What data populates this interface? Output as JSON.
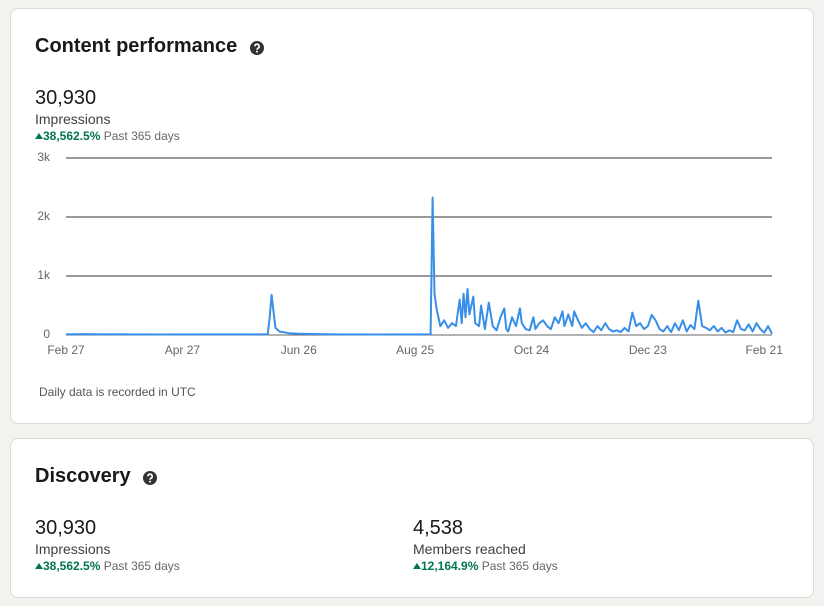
{
  "content_performance": {
    "title": "Content performance",
    "impressions": {
      "value": "30,930",
      "label": "Impressions",
      "change": "38,562.5%",
      "period": "Past 365 days"
    },
    "chart_data": {
      "type": "line",
      "color": "#378fe9",
      "x": [
        0,
        10,
        20,
        30,
        50,
        70,
        90,
        104,
        105,
        106,
        107,
        108,
        110,
        115,
        120,
        130,
        140,
        160,
        180,
        188,
        189,
        190,
        191,
        193,
        195,
        197,
        199,
        201,
        203,
        204,
        205,
        206,
        207,
        208,
        210,
        211,
        213,
        214,
        216,
        218,
        220,
        222,
        224,
        226,
        227,
        228,
        230,
        232,
        234,
        235,
        237,
        239,
        241,
        242,
        244,
        246,
        248,
        250,
        252,
        254,
        256,
        257,
        259,
        261,
        262,
        264,
        266,
        268,
        270,
        272,
        274,
        276,
        278,
        280,
        282,
        284,
        286,
        288,
        290,
        292,
        294,
        296,
        298,
        300,
        302,
        304,
        306,
        308,
        310,
        312,
        314,
        316,
        318,
        320,
        322,
        324,
        326,
        328,
        330,
        332,
        334,
        336,
        338,
        340,
        342,
        344,
        346,
        348,
        350,
        352,
        354,
        356,
        358,
        360,
        362,
        364
      ],
      "values": [
        10,
        15,
        10,
        12,
        8,
        10,
        10,
        12,
        300,
        680,
        400,
        120,
        60,
        30,
        20,
        15,
        10,
        8,
        10,
        12,
        2330,
        700,
        450,
        150,
        250,
        120,
        200,
        150,
        600,
        200,
        700,
        300,
        780,
        350,
        650,
        200,
        150,
        500,
        100,
        550,
        150,
        80,
        300,
        450,
        100,
        60,
        300,
        150,
        450,
        200,
        100,
        80,
        300,
        100,
        200,
        250,
        150,
        100,
        300,
        200,
        400,
        150,
        350,
        150,
        400,
        250,
        120,
        200,
        100,
        50,
        150,
        80,
        200,
        100,
        60,
        80,
        50,
        120,
        60,
        380,
        150,
        200,
        100,
        150,
        340,
        250,
        100,
        60,
        150,
        50,
        200,
        80,
        250,
        60,
        170,
        100,
        580,
        150,
        120,
        80,
        150,
        60,
        120,
        40,
        80,
        50,
        250,
        100,
        80,
        180,
        60,
        200,
        100,
        40,
        150,
        20
      ],
      "xlim": [
        0,
        364
      ],
      "xticks": [
        {
          "value": 0,
          "label": "Feb 27"
        },
        {
          "value": 60,
          "label": "Apr 27"
        },
        {
          "value": 120,
          "label": "Jun 26"
        },
        {
          "value": 180,
          "label": "Aug 25"
        },
        {
          "value": 240,
          "label": "Oct 24"
        },
        {
          "value": 300,
          "label": "Dec 23"
        },
        {
          "value": 360,
          "label": "Feb 21"
        }
      ],
      "ylim": [
        0,
        3000
      ],
      "yticks": [
        0,
        {
          "value": 1000,
          "label": "1k"
        },
        {
          "value": 2000,
          "label": "2k"
        },
        {
          "value": 3000,
          "label": "3k"
        }
      ],
      "grid": true
    },
    "note": "Daily data is recorded in UTC"
  },
  "discovery": {
    "title": "Discovery",
    "stats": [
      {
        "value": "30,930",
        "label": "Impressions",
        "change": "38,562.5%",
        "period": "Past 365 days"
      },
      {
        "value": "4,538",
        "label": "Members reached",
        "change": "12,164.9%",
        "period": "Past 365 days"
      }
    ]
  }
}
